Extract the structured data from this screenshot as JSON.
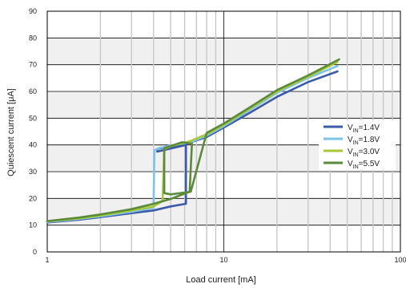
{
  "chart_data": {
    "type": "line",
    "title": "",
    "xlabel": "Load current [mA]",
    "ylabel": "Quiescent current [μA]",
    "x_scale": "log",
    "xlim": [
      1,
      100
    ],
    "ylim": [
      0,
      90
    ],
    "x_ticks": [
      1,
      10,
      100
    ],
    "y_ticks": [
      0,
      10,
      20,
      30,
      40,
      50,
      60,
      70,
      80,
      90
    ],
    "x_tick_labels": [
      "1",
      "10",
      "100"
    ],
    "y_tick_labels": [
      "0",
      "10",
      "20",
      "30",
      "40",
      "50",
      "60",
      "70",
      "80",
      "90"
    ],
    "grid": true,
    "band_fill": "#f0f0f0",
    "grid_color": "#c8c8c8",
    "legend": {
      "placement": "right",
      "entries": [
        {
          "base": "V",
          "sub": "IN",
          "suffix": "=1.4V"
        },
        {
          "base": "V",
          "sub": "IN",
          "suffix": "=1.8V"
        },
        {
          "base": "V",
          "sub": "IN",
          "suffix": "=3.0V"
        },
        {
          "base": "V",
          "sub": "IN",
          "suffix": "=5.5V"
        }
      ]
    },
    "series": [
      {
        "color": "#3b5ba8",
        "points": [
          [
            1,
            11
          ],
          [
            1.5,
            12
          ],
          [
            2,
            13
          ],
          [
            3,
            14.5
          ],
          [
            4,
            15.5
          ],
          [
            5,
            17
          ],
          [
            6.1,
            18
          ],
          [
            6.1,
            40
          ],
          [
            4.2,
            37.5
          ],
          [
            4.2,
            38.5
          ],
          [
            5,
            39.5
          ],
          [
            6.2,
            40.5
          ],
          [
            8,
            43
          ],
          [
            10,
            46.5
          ],
          [
            14,
            52
          ],
          [
            20,
            58
          ],
          [
            30,
            63.5
          ],
          [
            44,
            67.5
          ]
        ]
      },
      {
        "color": "#7fc4e6",
        "points": [
          [
            1,
            11.2
          ],
          [
            1.5,
            12.3
          ],
          [
            2,
            13.3
          ],
          [
            3,
            15
          ],
          [
            4,
            16.5
          ],
          [
            4,
            19
          ],
          [
            4.05,
            38
          ],
          [
            4.3,
            38.8
          ],
          [
            5,
            39.8
          ],
          [
            6.5,
            41
          ],
          [
            8,
            43.5
          ],
          [
            10,
            47
          ],
          [
            14,
            53
          ],
          [
            20,
            59.5
          ],
          [
            30,
            65
          ],
          [
            44,
            69.5
          ]
        ]
      },
      {
        "color": "#a8c83a",
        "points": [
          [
            1,
            11.4
          ],
          [
            1.5,
            12.5
          ],
          [
            2,
            13.6
          ],
          [
            3,
            15.5
          ],
          [
            4,
            17
          ],
          [
            4.5,
            19
          ],
          [
            4.6,
            38.5
          ],
          [
            5,
            39.5
          ],
          [
            6.5,
            41.5
          ],
          [
            8,
            44
          ],
          [
            10,
            47.5
          ],
          [
            14,
            53.5
          ],
          [
            20,
            60
          ],
          [
            30,
            65.5
          ],
          [
            44,
            71
          ]
        ]
      },
      {
        "color": "#5a8a3a",
        "points": [
          [
            1,
            11.5
          ],
          [
            1.5,
            12.8
          ],
          [
            2,
            14
          ],
          [
            3,
            16
          ],
          [
            4,
            18
          ],
          [
            5,
            19.8
          ],
          [
            6.4,
            22.5
          ],
          [
            6.6,
            40.5
          ],
          [
            5.8,
            41
          ],
          [
            4.6,
            38.8
          ],
          [
            4.6,
            22
          ],
          [
            5,
            21.5
          ],
          [
            6.5,
            22.5
          ],
          [
            8,
            44.5
          ],
          [
            10,
            48
          ],
          [
            14,
            54
          ],
          [
            20,
            60.5
          ],
          [
            30,
            66
          ],
          [
            45,
            72
          ]
        ]
      }
    ]
  }
}
